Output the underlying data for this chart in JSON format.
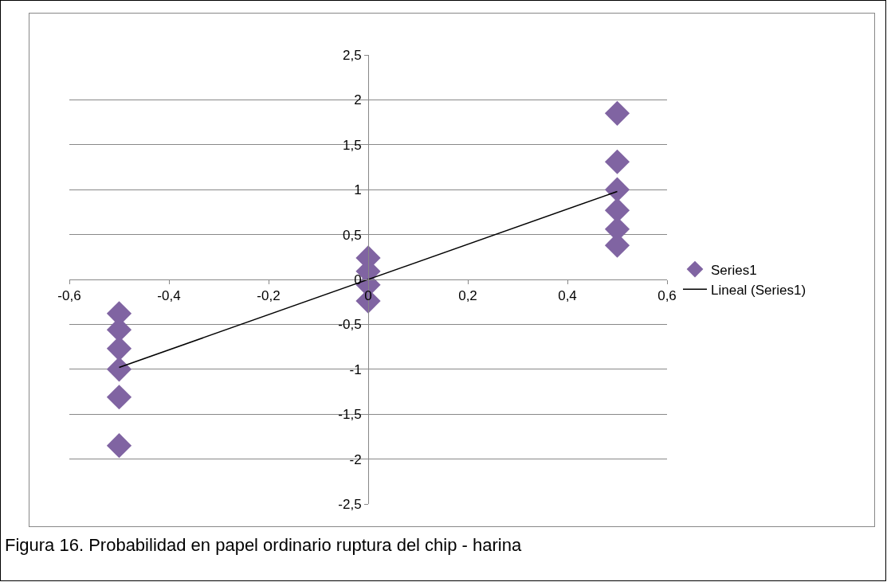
{
  "chart_data": {
    "type": "scatter",
    "xlim": [
      -0.6,
      0.6
    ],
    "ylim": [
      -2.5,
      2.5
    ],
    "xticks": [
      {
        "value": -0.6,
        "label": "-0,6"
      },
      {
        "value": -0.4,
        "label": "-0,4"
      },
      {
        "value": -0.2,
        "label": "-0,2"
      },
      {
        "value": 0,
        "label": "0"
      },
      {
        "value": 0.2,
        "label": "0,2"
      },
      {
        "value": 0.4,
        "label": "0,4"
      },
      {
        "value": 0.6,
        "label": "0,6"
      }
    ],
    "yticks": [
      {
        "value": -2.5,
        "label": "-2,5"
      },
      {
        "value": -2,
        "label": "-2"
      },
      {
        "value": -1.5,
        "label": "-1,5"
      },
      {
        "value": -1,
        "label": "-1"
      },
      {
        "value": -0.5,
        "label": "-0,5"
      },
      {
        "value": 0,
        "label": "0"
      },
      {
        "value": 0.5,
        "label": "0,5"
      },
      {
        "value": 1,
        "label": "1"
      },
      {
        "value": 1.5,
        "label": "1,5"
      },
      {
        "value": 2,
        "label": "2"
      },
      {
        "value": 2.5,
        "label": "2,5"
      }
    ],
    "grid": "y",
    "legend": "right",
    "marker": "diamond",
    "series": [
      {
        "name": "Series1",
        "color": "#8064a2",
        "x": [
          -0.5,
          -0.5,
          -0.5,
          -0.5,
          -0.5,
          -0.5,
          0,
          0,
          0,
          0,
          0.5,
          0.5,
          0.5,
          0.5,
          0.5,
          0.5
        ],
        "values": [
          -0.38,
          -0.56,
          -0.77,
          -1.0,
          -1.31,
          -1.85,
          0.24,
          0.09,
          -0.06,
          -0.24,
          0.38,
          0.56,
          0.77,
          1.0,
          1.31,
          1.85
        ]
      },
      {
        "name": "Lineal (Series1)",
        "type": "line",
        "color": "#000000",
        "x": [
          -0.5,
          0.5
        ],
        "values": [
          -0.98,
          0.98
        ],
        "line_style": "solid",
        "marker": "none"
      }
    ],
    "annotations": [
      "Figura 16. Probabilidad en papel ordinario ruptura del chip - harina"
    ]
  }
}
